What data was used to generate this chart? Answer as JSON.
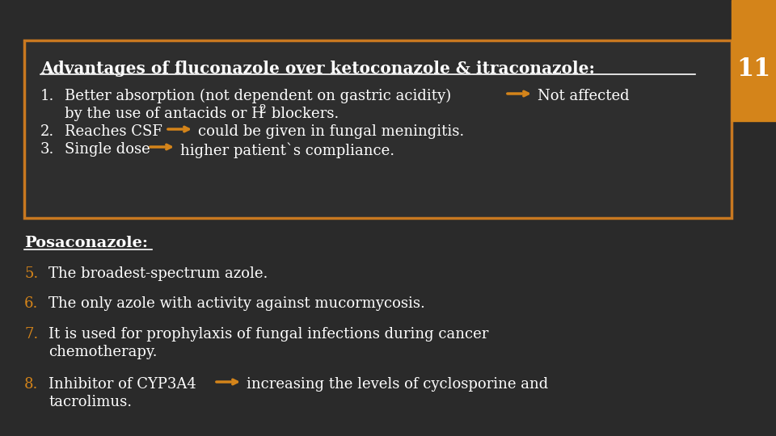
{
  "bg_color": "#3a3a3a",
  "outer_bg": "#2a2a2a",
  "box_bg": "#2e2e2e",
  "box_edge_color": "#c87820",
  "orange_color": "#d4841a",
  "white_color": "#ffffff",
  "slide_number": "11",
  "title": "Advantages of fluconazole over ketoconazole & itraconazole:",
  "section2_title": "Posaconazole:"
}
